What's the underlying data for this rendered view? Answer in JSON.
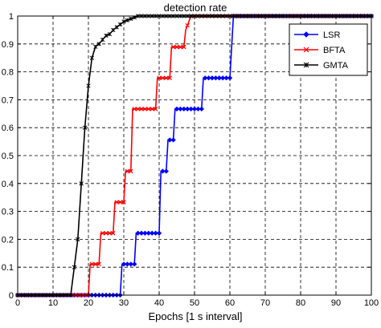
{
  "chart_data": {
    "type": "line",
    "title": "detection rate",
    "xlabel": "Epochs [1 s interval]",
    "ylabel": "",
    "xlim": [
      0,
      100
    ],
    "ylim": [
      0,
      1
    ],
    "xticks": [
      "0",
      "10",
      "20",
      "30",
      "40",
      "50",
      "60",
      "70",
      "80",
      "90",
      "100"
    ],
    "yticks": [
      "0",
      "0.1",
      "0.2",
      "0.3",
      "0.4",
      "0.5",
      "0.6",
      "0.7",
      "0.8",
      "0.9",
      "1"
    ],
    "grid": true,
    "legend_position": "top-right",
    "series": [
      {
        "name": "LSR",
        "color": "#0000ff",
        "marker": "diamond",
        "x": [
          0,
          29,
          29.5,
          33,
          33.5,
          40,
          40.5,
          42,
          42.5,
          44,
          44.5,
          52,
          52.5,
          60,
          60.5,
          61,
          100
        ],
        "y": [
          0,
          0,
          0.111,
          0.111,
          0.222,
          0.222,
          0.444,
          0.444,
          0.556,
          0.556,
          0.667,
          0.667,
          0.778,
          0.778,
          0.889,
          1,
          1
        ]
      },
      {
        "name": "BFTA",
        "color": "#ff0000",
        "marker": "x",
        "x": [
          0,
          20,
          20.5,
          23,
          23.5,
          27,
          27.5,
          30,
          30.5,
          32,
          32.5,
          39,
          39.5,
          43,
          43.5,
          47,
          47.5,
          49,
          100
        ],
        "y": [
          0,
          0,
          0.111,
          0.111,
          0.222,
          0.222,
          0.333,
          0.333,
          0.444,
          0.444,
          0.667,
          0.667,
          0.778,
          0.778,
          0.889,
          0.889,
          0.95,
          1,
          1
        ]
      },
      {
        "name": "GMTA",
        "color": "#000000",
        "marker": "star",
        "x": [
          0,
          15,
          16,
          17,
          18,
          19,
          20,
          21,
          22,
          23,
          24,
          25,
          26,
          27,
          28,
          29,
          30,
          31,
          32,
          33,
          34,
          35,
          36,
          100
        ],
        "y": [
          0,
          0,
          0.1,
          0.2,
          0.4,
          0.6,
          0.75,
          0.85,
          0.89,
          0.9,
          0.915,
          0.93,
          0.935,
          0.95,
          0.96,
          0.97,
          0.98,
          0.985,
          0.99,
          0.995,
          1,
          1,
          1,
          1
        ]
      }
    ]
  }
}
